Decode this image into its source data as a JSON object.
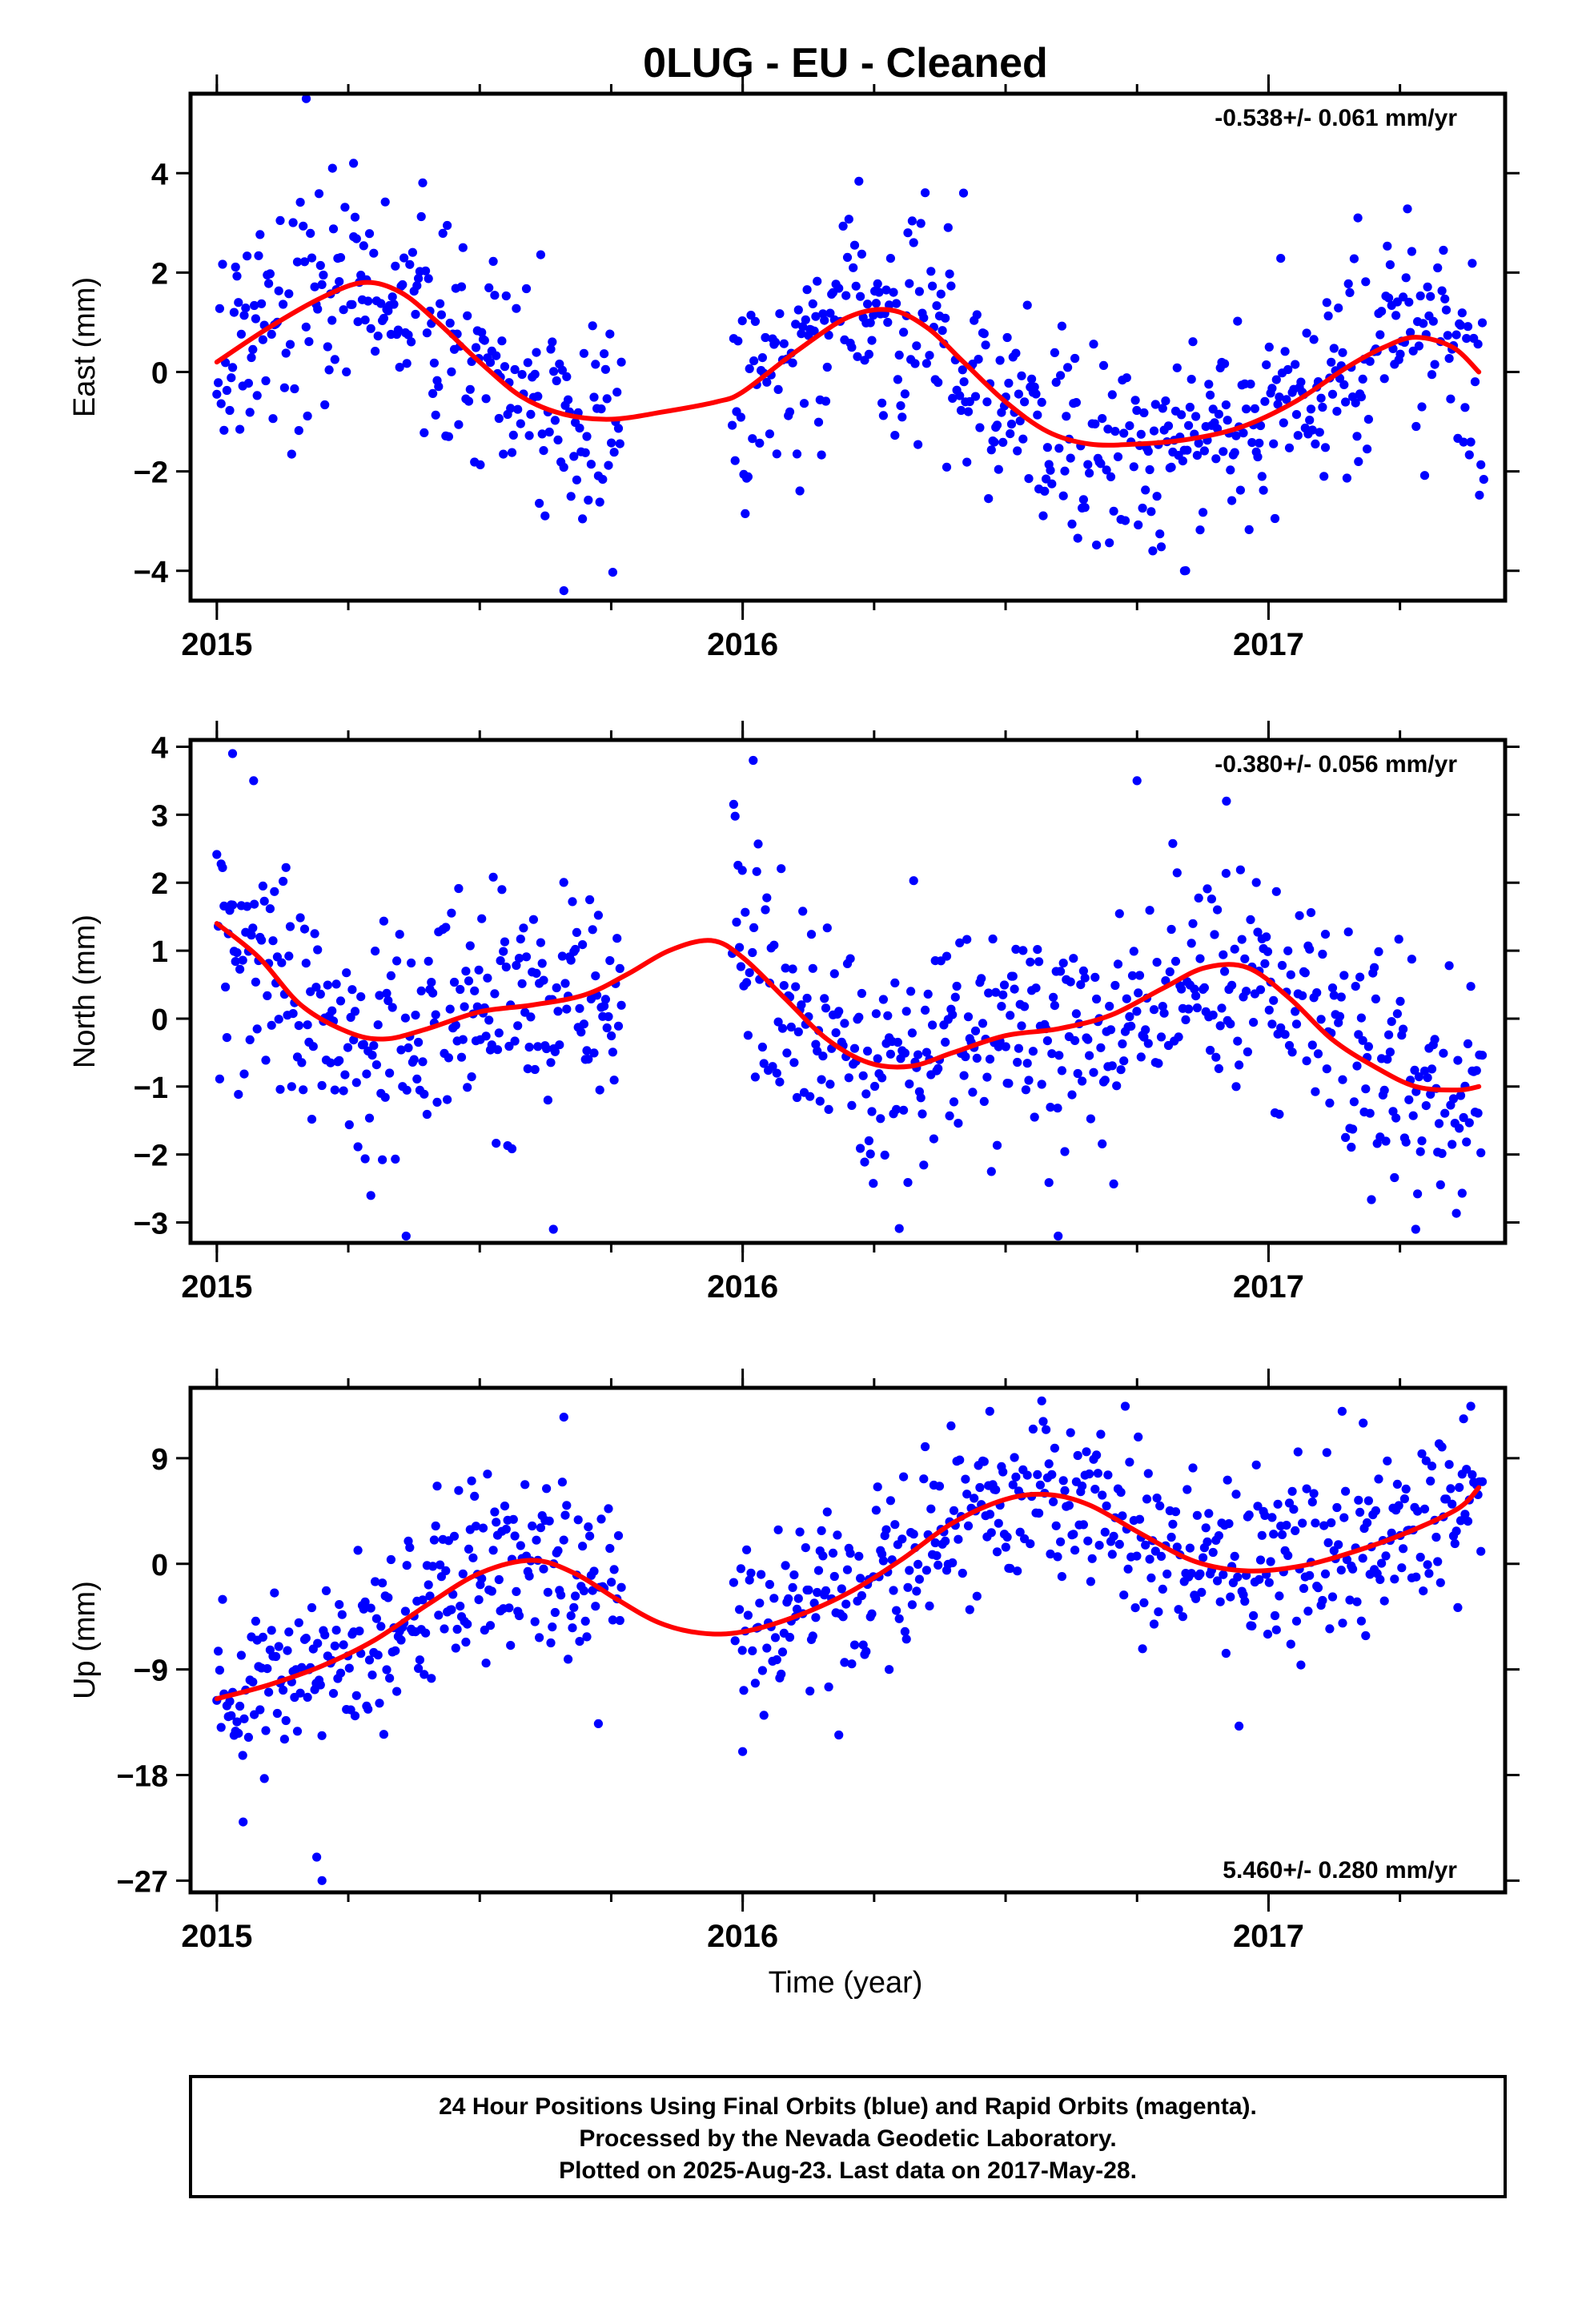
{
  "title": "0LUG  - EU - Cleaned",
  "colors": {
    "points": "#0000ff",
    "fit": "#ff0000",
    "axis": "#000000"
  },
  "x_tick_labels": [
    "2015",
    "2016",
    "2017"
  ],
  "xlabel": "Time (year)",
  "caption": [
    "24 Hour Positions Using Final Orbits (blue) and Rapid Orbits (magenta).",
    "Processed by the Nevada Geodetic Laboratory.",
    "Plotted on 2025-Aug-23. Last data on 2017-May-28."
  ],
  "chart_data": [
    {
      "type": "scatter",
      "name": "east",
      "ylabel": "East (mm)",
      "rate_label": "-0.538+/- 0.061 mm/yr",
      "rate_position": "top-right",
      "xlim": [
        2014.95,
        2017.45
      ],
      "ylim": [
        -4.6,
        5.6
      ],
      "y_ticks": [
        -4,
        -2,
        0,
        2,
        4
      ],
      "y_tick_labels": [
        "−4",
        "−2",
        "0",
        "2",
        "4"
      ],
      "x_ticks": [
        2015,
        2016,
        2017
      ],
      "fit": {
        "x": [
          2015.0,
          2015.1,
          2015.2,
          2015.28,
          2015.35,
          2015.42,
          2015.5,
          2015.58,
          2015.66,
          2015.75,
          2015.85,
          2015.95,
          2016.0,
          2016.1,
          2016.2,
          2016.28,
          2016.35,
          2016.42,
          2016.5,
          2016.58,
          2016.66,
          2016.75,
          2016.85,
          2016.95,
          2017.05,
          2017.15,
          2017.22,
          2017.28,
          2017.35,
          2017.4
        ],
        "y": [
          0.2,
          0.9,
          1.5,
          1.8,
          1.6,
          1.0,
          0.2,
          -0.5,
          -0.85,
          -0.95,
          -0.8,
          -0.6,
          -0.4,
          0.4,
          1.1,
          1.25,
          0.9,
          0.2,
          -0.6,
          -1.2,
          -1.45,
          -1.45,
          -1.35,
          -1.1,
          -0.6,
          0.1,
          0.5,
          0.7,
          0.5,
          0.0
        ]
      },
      "gaps": [
        [
          2015.77,
          2015.98
        ]
      ],
      "scatter_sd": 1.25,
      "outliers": [
        [
          2015.17,
          5.5
        ],
        [
          2015.22,
          4.1
        ],
        [
          2015.26,
          4.2
        ],
        [
          2015.66,
          -4.4
        ],
        [
          2016.42,
          3.6
        ],
        [
          2016.78,
          -3.6
        ],
        [
          2016.84,
          -4.0
        ],
        [
          2017.17,
          3.1
        ]
      ]
    },
    {
      "type": "scatter",
      "name": "north",
      "ylabel": "North (mm)",
      "rate_label": "-0.380+/- 0.056 mm/yr",
      "rate_position": "top-right",
      "xlim": [
        2014.95,
        2017.45
      ],
      "ylim": [
        -3.3,
        4.1
      ],
      "y_ticks": [
        -3,
        -2,
        -1,
        0,
        1,
        2,
        3,
        4
      ],
      "y_tick_labels": [
        "−3",
        "−2",
        "−1",
        "0",
        "1",
        "2",
        "3",
        "4"
      ],
      "x_ticks": [
        2015,
        2016,
        2017
      ],
      "fit": {
        "x": [
          2015.0,
          2015.08,
          2015.16,
          2015.25,
          2015.32,
          2015.4,
          2015.5,
          2015.6,
          2015.7,
          2015.78,
          2015.86,
          2015.94,
          2016.0,
          2016.08,
          2016.16,
          2016.24,
          2016.32,
          2016.4,
          2016.5,
          2016.6,
          2016.7,
          2016.8,
          2016.88,
          2016.96,
          2017.04,
          2017.12,
          2017.2,
          2017.28,
          2017.36,
          2017.4
        ],
        "y": [
          1.4,
          0.9,
          0.2,
          -0.2,
          -0.3,
          -0.15,
          0.1,
          0.2,
          0.35,
          0.65,
          1.0,
          1.15,
          0.9,
          0.3,
          -0.3,
          -0.65,
          -0.7,
          -0.5,
          -0.25,
          -0.15,
          0.05,
          0.45,
          0.75,
          0.75,
          0.3,
          -0.3,
          -0.7,
          -1.0,
          -1.05,
          -1.0
        ]
      },
      "gaps": [
        [
          2015.77,
          2015.98
        ]
      ],
      "scatter_sd": 0.95,
      "outliers": [
        [
          2015.03,
          3.9
        ],
        [
          2015.07,
          3.5
        ],
        [
          2015.64,
          -3.1
        ],
        [
          2015.36,
          -3.2
        ],
        [
          2016.02,
          3.8
        ],
        [
          2016.6,
          -3.2
        ],
        [
          2016.75,
          3.5
        ],
        [
          2016.92,
          3.2
        ],
        [
          2017.28,
          -3.1
        ]
      ]
    },
    {
      "type": "scatter",
      "name": "up",
      "ylabel": "Up (mm)",
      "rate_label": "5.460+/- 0.280 mm/yr",
      "rate_position": "bottom-right",
      "xlim": [
        2014.95,
        2017.45
      ],
      "ylim": [
        -28,
        15
      ],
      "y_ticks": [
        -27,
        -18,
        -9,
        0,
        9
      ],
      "y_tick_labels": [
        "−27",
        "−18",
        "−9",
        "0",
        "9"
      ],
      "x_ticks": [
        2015,
        2016,
        2017
      ],
      "fit": {
        "x": [
          2015.0,
          2015.1,
          2015.2,
          2015.3,
          2015.4,
          2015.5,
          2015.6,
          2015.68,
          2015.76,
          2015.84,
          2015.92,
          2016.0,
          2016.1,
          2016.2,
          2016.3,
          2016.4,
          2016.5,
          2016.58,
          2016.66,
          2016.76,
          2016.86,
          2016.96,
          2017.06,
          2017.16,
          2017.26,
          2017.36,
          2017.4
        ],
        "y": [
          -11.5,
          -10.3,
          -8.7,
          -6.5,
          -3.5,
          -0.8,
          0.3,
          -0.8,
          -3.0,
          -5.0,
          -5.9,
          -5.8,
          -4.5,
          -2.5,
          0.3,
          3.5,
          5.5,
          5.9,
          5.0,
          2.5,
          0.2,
          -0.6,
          -0.2,
          1.0,
          2.6,
          4.7,
          6.5
        ]
      },
      "gaps": [
        [
          2015.77,
          2015.98
        ]
      ],
      "scatter_sd": 4.2,
      "outliers": [
        [
          2015.05,
          -22.0
        ],
        [
          2015.2,
          -27.0
        ],
        [
          2015.19,
          -25.0
        ],
        [
          2015.66,
          12.5
        ],
        [
          2016.47,
          13.0
        ],
        [
          2017.14,
          13.0
        ],
        [
          2017.18,
          12.0
        ],
        [
          2016.0,
          -16.0
        ]
      ]
    }
  ]
}
